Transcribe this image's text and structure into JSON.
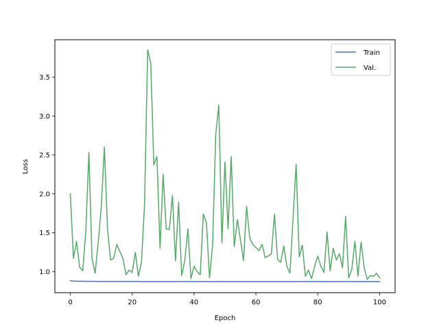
{
  "chart_data": {
    "type": "line",
    "xlabel": "Epoch",
    "ylabel": "Loss",
    "xlim": [
      -5,
      105
    ],
    "ylim": [
      0.73,
      3.98
    ],
    "xticks": [
      0,
      20,
      40,
      60,
      80,
      100
    ],
    "yticks": [
      1.0,
      1.5,
      2.0,
      2.5,
      3.0,
      3.5
    ],
    "ytick_labels": [
      "1.0",
      "1.5",
      "2.0",
      "2.5",
      "3.0",
      "3.5"
    ],
    "grid": false,
    "legend_position": "top-right",
    "x": [
      0,
      1,
      2,
      3,
      4,
      5,
      6,
      7,
      8,
      9,
      10,
      11,
      12,
      13,
      14,
      15,
      16,
      17,
      18,
      19,
      20,
      21,
      22,
      23,
      24,
      25,
      26,
      27,
      28,
      29,
      30,
      31,
      32,
      33,
      34,
      35,
      36,
      37,
      38,
      39,
      40,
      41,
      42,
      43,
      44,
      45,
      46,
      47,
      48,
      49,
      50,
      51,
      52,
      53,
      54,
      55,
      56,
      57,
      58,
      59,
      60,
      61,
      62,
      63,
      64,
      65,
      66,
      67,
      68,
      69,
      70,
      71,
      72,
      73,
      74,
      75,
      76,
      77,
      78,
      79,
      80,
      81,
      82,
      83,
      84,
      85,
      86,
      87,
      88,
      89,
      90,
      91,
      92,
      93,
      94,
      95,
      96,
      97,
      98,
      99,
      100
    ],
    "series": [
      {
        "name": "Train",
        "color": "#4c72b0",
        "values": [
          0.885,
          0.879,
          0.877,
          0.876,
          0.876,
          0.875,
          0.875,
          0.875,
          0.875,
          0.874,
          0.874,
          0.874,
          0.874,
          0.874,
          0.874,
          0.874,
          0.874,
          0.874,
          0.874,
          0.874,
          0.874,
          0.874,
          0.874,
          0.873,
          0.873,
          0.873,
          0.873,
          0.873,
          0.873,
          0.873,
          0.873,
          0.873,
          0.873,
          0.873,
          0.873,
          0.873,
          0.873,
          0.873,
          0.873,
          0.873,
          0.873,
          0.873,
          0.873,
          0.873,
          0.873,
          0.873,
          0.873,
          0.873,
          0.873,
          0.873,
          0.873,
          0.873,
          0.873,
          0.873,
          0.873,
          0.873,
          0.873,
          0.873,
          0.873,
          0.873,
          0.873,
          0.873,
          0.873,
          0.873,
          0.873,
          0.873,
          0.873,
          0.873,
          0.873,
          0.873,
          0.873,
          0.873,
          0.873,
          0.873,
          0.873,
          0.873,
          0.873,
          0.873,
          0.873,
          0.873,
          0.873,
          0.873,
          0.873,
          0.873,
          0.873,
          0.873,
          0.873,
          0.873,
          0.873,
          0.873,
          0.873,
          0.873,
          0.873,
          0.873,
          0.873,
          0.873,
          0.873,
          0.873,
          0.873,
          0.873,
          0.873
        ]
      },
      {
        "name": "Val.",
        "color": "#55a868",
        "values": [
          2.0,
          1.17,
          1.39,
          1.06,
          1.01,
          1.52,
          2.53,
          1.17,
          0.98,
          1.37,
          1.83,
          2.6,
          1.56,
          1.15,
          1.17,
          1.35,
          1.26,
          1.17,
          0.96,
          1.02,
          0.99,
          1.25,
          0.94,
          1.12,
          1.87,
          3.85,
          3.68,
          2.37,
          2.48,
          1.3,
          2.25,
          1.55,
          1.54,
          1.98,
          1.14,
          1.89,
          0.95,
          1.14,
          1.55,
          0.91,
          1.07,
          1.0,
          0.96,
          1.74,
          1.63,
          0.92,
          1.34,
          2.76,
          3.14,
          1.37,
          2.41,
          1.55,
          2.48,
          1.32,
          1.67,
          1.41,
          1.14,
          1.84,
          1.43,
          1.35,
          1.31,
          1.27,
          1.35,
          1.18,
          1.2,
          1.23,
          1.74,
          1.16,
          1.12,
          1.33,
          1.07,
          0.98,
          1.68,
          2.38,
          1.19,
          1.34,
          0.94,
          1.02,
          0.91,
          1.07,
          1.2,
          1.07,
          0.99,
          1.51,
          1.01,
          1.3,
          1.15,
          1.23,
          1.05,
          1.71,
          0.92,
          1.03,
          1.39,
          0.94,
          1.38,
          1.05,
          0.9,
          0.95,
          0.94,
          0.98,
          0.92
        ]
      }
    ]
  }
}
